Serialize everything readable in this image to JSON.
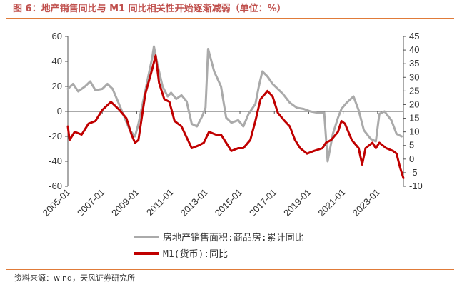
{
  "title": "图 6：地产销售同比与 M1 同比相关性开始逐渐减弱（单位：%）",
  "source": "资料来源：wind，天风证券研究所",
  "chart_data": {
    "type": "line",
    "title": "图 6：地产销售同比与 M1 同比相关性开始逐渐减弱（单位：%）",
    "x_ticks": [
      "2005-01",
      "2007-01",
      "2009-01",
      "2011-01",
      "2013-01",
      "2015-01",
      "2017-01",
      "2019-01",
      "2021-01",
      "2023-01"
    ],
    "left_axis": {
      "ylim": [
        -60,
        60
      ],
      "ticks": [
        -60,
        -40,
        -20,
        0,
        20,
        40,
        60
      ]
    },
    "right_axis": {
      "ylim": [
        -10,
        45
      ],
      "ticks": [
        -10,
        -5,
        0,
        5,
        10,
        15,
        20,
        25,
        30,
        35,
        40,
        45
      ]
    },
    "series": [
      {
        "name": "房地产销售面积:商品房:累计同比",
        "axis": "left",
        "color": "#aaaaaa",
        "points": [
          [
            2005.0,
            18
          ],
          [
            2005.3,
            22
          ],
          [
            2005.6,
            16
          ],
          [
            2006.0,
            20
          ],
          [
            2006.3,
            24
          ],
          [
            2006.6,
            17
          ],
          [
            2007.0,
            18
          ],
          [
            2007.3,
            22
          ],
          [
            2007.6,
            18
          ],
          [
            2008.0,
            5
          ],
          [
            2008.3,
            -5
          ],
          [
            2008.6,
            -15
          ],
          [
            2008.9,
            -20
          ],
          [
            2009.1,
            -10
          ],
          [
            2009.4,
            10
          ],
          [
            2009.7,
            30
          ],
          [
            2009.9,
            43
          ],
          [
            2010.0,
            52
          ],
          [
            2010.2,
            38
          ],
          [
            2010.5,
            20
          ],
          [
            2010.8,
            12
          ],
          [
            2011.0,
            15
          ],
          [
            2011.3,
            10
          ],
          [
            2011.6,
            13
          ],
          [
            2011.9,
            8
          ],
          [
            2012.2,
            -10
          ],
          [
            2012.5,
            -12
          ],
          [
            2012.8,
            -4
          ],
          [
            2013.0,
            3
          ],
          [
            2013.15,
            50
          ],
          [
            2013.5,
            32
          ],
          [
            2013.9,
            20
          ],
          [
            2014.2,
            -5
          ],
          [
            2014.5,
            -9
          ],
          [
            2014.9,
            -7
          ],
          [
            2015.2,
            -12
          ],
          [
            2015.5,
            -2
          ],
          [
            2015.9,
            6
          ],
          [
            2016.1,
            20
          ],
          [
            2016.3,
            32
          ],
          [
            2016.6,
            28
          ],
          [
            2016.9,
            22
          ],
          [
            2017.2,
            18
          ],
          [
            2017.5,
            14
          ],
          [
            2017.9,
            7
          ],
          [
            2018.3,
            3
          ],
          [
            2018.7,
            2
          ],
          [
            2019.1,
            0
          ],
          [
            2019.5,
            -1
          ],
          [
            2019.9,
            -1
          ],
          [
            2020.1,
            -40
          ],
          [
            2020.4,
            -18
          ],
          [
            2020.7,
            -5
          ],
          [
            2020.9,
            2
          ],
          [
            2021.2,
            7
          ],
          [
            2021.6,
            12
          ],
          [
            2021.9,
            1
          ],
          [
            2022.2,
            -15
          ],
          [
            2022.6,
            -22
          ],
          [
            2022.9,
            -24
          ],
          [
            2023.1,
            -2
          ],
          [
            2023.4,
            0
          ],
          [
            2023.8,
            -7
          ],
          [
            2024.1,
            -18
          ],
          [
            2024.4,
            -20
          ]
        ]
      },
      {
        "name": "M1(货币):同比",
        "axis": "right",
        "color": "#c00000",
        "points": [
          [
            2005.0,
            12
          ],
          [
            2005.1,
            7
          ],
          [
            2005.4,
            10
          ],
          [
            2005.8,
            9
          ],
          [
            2006.2,
            13
          ],
          [
            2006.6,
            14
          ],
          [
            2007.0,
            18
          ],
          [
            2007.5,
            21
          ],
          [
            2008.0,
            18
          ],
          [
            2008.4,
            15
          ],
          [
            2008.7,
            9
          ],
          [
            2008.9,
            6
          ],
          [
            2009.1,
            7
          ],
          [
            2009.5,
            24
          ],
          [
            2009.9,
            33
          ],
          [
            2010.1,
            38
          ],
          [
            2010.3,
            28
          ],
          [
            2010.6,
            22
          ],
          [
            2010.9,
            21
          ],
          [
            2011.2,
            14
          ],
          [
            2011.6,
            12
          ],
          [
            2011.9,
            8
          ],
          [
            2012.2,
            4
          ],
          [
            2012.6,
            5
          ],
          [
            2012.9,
            6
          ],
          [
            2013.2,
            10
          ],
          [
            2013.6,
            9
          ],
          [
            2013.9,
            9
          ],
          [
            2014.2,
            6
          ],
          [
            2014.5,
            3
          ],
          [
            2014.9,
            4
          ],
          [
            2015.2,
            4
          ],
          [
            2015.6,
            7
          ],
          [
            2015.9,
            14
          ],
          [
            2016.2,
            22
          ],
          [
            2016.6,
            25
          ],
          [
            2016.9,
            23
          ],
          [
            2017.2,
            17
          ],
          [
            2017.6,
            14
          ],
          [
            2017.9,
            12
          ],
          [
            2018.2,
            7
          ],
          [
            2018.5,
            4
          ],
          [
            2018.9,
            2
          ],
          [
            2019.3,
            3
          ],
          [
            2019.8,
            4
          ],
          [
            2020.0,
            6
          ],
          [
            2020.3,
            7
          ],
          [
            2020.7,
            10
          ],
          [
            2020.9,
            14
          ],
          [
            2021.1,
            13
          ],
          [
            2021.5,
            7
          ],
          [
            2021.9,
            4
          ],
          [
            2022.1,
            -2
          ],
          [
            2022.3,
            4
          ],
          [
            2022.7,
            6
          ],
          [
            2022.9,
            4
          ],
          [
            2023.1,
            6
          ],
          [
            2023.5,
            4
          ],
          [
            2023.9,
            3
          ],
          [
            2024.1,
            2
          ],
          [
            2024.3,
            -3
          ],
          [
            2024.5,
            -7
          ]
        ]
      }
    ],
    "legend": [
      "房地产销售面积:商品房:累计同比",
      "M1(货币):同比"
    ]
  }
}
